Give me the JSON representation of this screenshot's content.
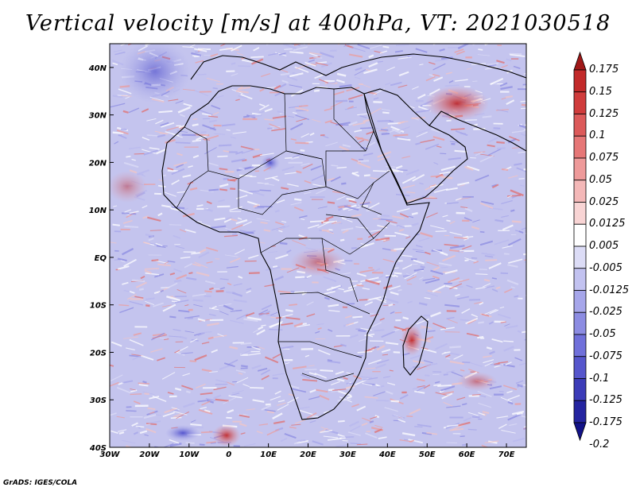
{
  "title": "Vertical velocity [m/s] at 400hPa, VT: 2021030518",
  "credit": "GrADS: IGES/COLA",
  "map": {
    "lon_ticks": [
      "30W",
      "20W",
      "10W",
      "0",
      "10E",
      "20E",
      "30E",
      "40E",
      "50E",
      "60E",
      "70E"
    ],
    "lat_ticks": [
      "40N",
      "30N",
      "20N",
      "10N",
      "EQ",
      "10S",
      "20S",
      "30S",
      "40S"
    ],
    "extent": {
      "lon": [
        -30,
        75
      ],
      "lat": [
        -40,
        45
      ]
    }
  },
  "colorbar": {
    "levels": [
      "0.175",
      "0.15",
      "0.125",
      "0.1",
      "0.075",
      "0.05",
      "0.025",
      "0.0125",
      "0.005",
      "-0.005",
      "-0.0125",
      "-0.025",
      "-0.05",
      "-0.075",
      "-0.1",
      "-0.125",
      "-0.175",
      "-0.2"
    ],
    "colors": [
      "#a01818",
      "#c22a2a",
      "#d03c3c",
      "#dc5a5a",
      "#e67777",
      "#ee9a9a",
      "#f4b8b8",
      "#f8d4d4",
      "#ffffff",
      "#dcdcf6",
      "#c2c2f0",
      "#a6a6ea",
      "#8c8ce2",
      "#7070da",
      "#5656cc",
      "#3c3cb8",
      "#2424a0",
      "#121288"
    ]
  }
}
